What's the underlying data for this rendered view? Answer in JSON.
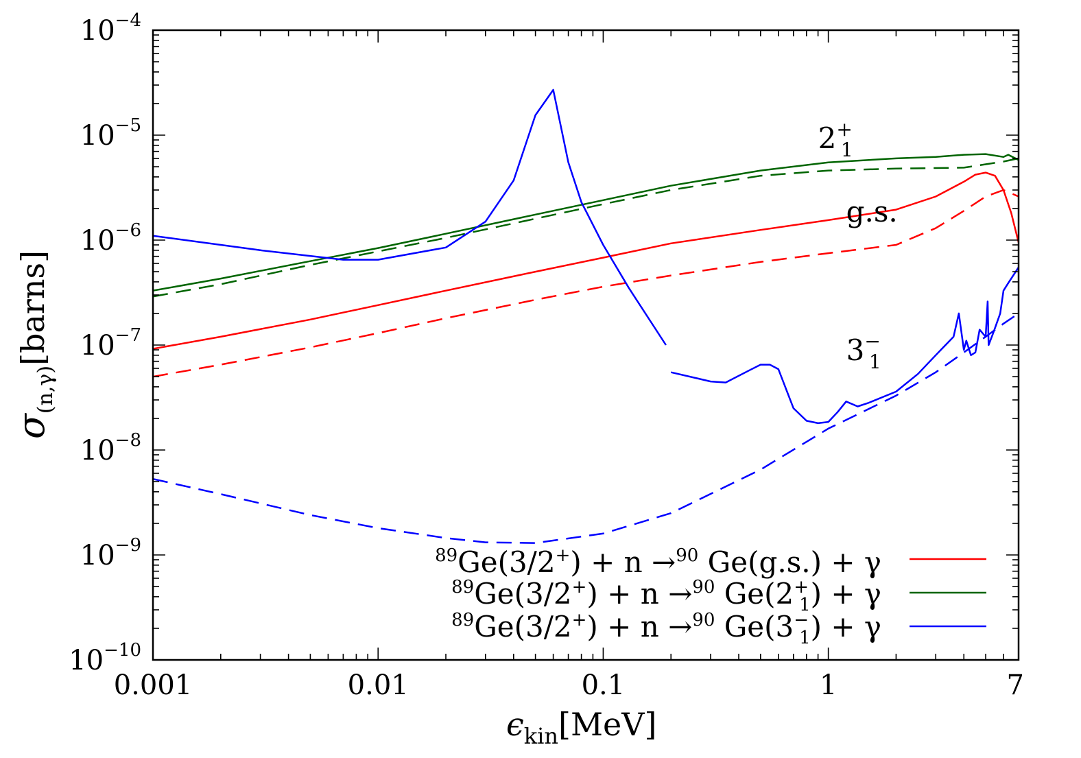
{
  "chart_data": {
    "type": "line",
    "xscale": "log",
    "yscale": "log",
    "xlim": [
      0.001,
      7
    ],
    "ylim": [
      1e-10,
      0.0001
    ],
    "xlabel": {
      "main": "ϵ",
      "sub": "kin",
      "unit": "[MeV]"
    },
    "ylabel": {
      "main": "σ",
      "sub": "(n,γ)",
      "unit": "[barns]"
    },
    "x_ticks": [
      {
        "value": 0.001,
        "label": "0.001"
      },
      {
        "value": 0.01,
        "label": "0.01"
      },
      {
        "value": 0.1,
        "label": "0.1"
      },
      {
        "value": 1,
        "label": "1"
      },
      {
        "value": 7,
        "label": "7"
      }
    ],
    "y_ticks": [
      {
        "value": 0.0001,
        "base": "10",
        "exp": "−4"
      },
      {
        "value": 1e-05,
        "base": "10",
        "exp": "−5"
      },
      {
        "value": 1e-06,
        "base": "10",
        "exp": "−6"
      },
      {
        "value": 1e-07,
        "base": "10",
        "exp": "−7"
      },
      {
        "value": 1e-08,
        "base": "10",
        "exp": "−8"
      },
      {
        "value": 1e-09,
        "base": "10",
        "exp": "−9"
      },
      {
        "value": 1e-10,
        "base": "10",
        "exp": "−10"
      }
    ],
    "annotations": [
      {
        "id": "2plus",
        "base": "2",
        "sup": "+",
        "sub": "1",
        "x": 0.9,
        "y": 7.5e-06
      },
      {
        "id": "gs",
        "text": "g.s.",
        "x": 1.2,
        "y": 1.5e-06
      },
      {
        "id": "3minus",
        "base": "3",
        "sup": "−",
        "sub": "1",
        "x": 1.2,
        "y": 7.2e-08
      }
    ],
    "legend_position": "bottom-right",
    "legend": [
      {
        "pre_sup": "89",
        "pre": "Ge(3/2",
        "pre_sup2": "+",
        "mid": ") + n →",
        "mid_sup": "90",
        "post": " Ge(g.s.) + γ",
        "color": "#ff0000"
      },
      {
        "pre_sup": "89",
        "pre": "Ge(3/2",
        "pre_sup2": "+",
        "mid": ") + n →",
        "mid_sup": "90",
        "post": " Ge(2",
        "post_sup": "+",
        "post_sub": "1",
        "tail": ") + γ",
        "color": "#006400"
      },
      {
        "pre_sup": "89",
        "pre": "Ge(3/2",
        "pre_sup2": "+",
        "mid": ") + n →",
        "mid_sup": "90",
        "post": " Ge(3",
        "post_sup": "−",
        "post_sub": "1",
        "tail": ") + γ",
        "color": "#0000ff"
      }
    ],
    "series": [
      {
        "color": "#ff0000",
        "style": "solid",
        "points": [
          [
            0.001,
            9.2e-08
          ],
          [
            0.002,
            1.2e-07
          ],
          [
            0.005,
            1.75e-07
          ],
          [
            0.01,
            2.4e-07
          ],
          [
            0.02,
            3.3e-07
          ],
          [
            0.05,
            5e-07
          ],
          [
            0.1,
            6.8e-07
          ],
          [
            0.2,
            9.3e-07
          ],
          [
            0.5,
            1.25e-06
          ],
          [
            1,
            1.55e-06
          ],
          [
            2,
            1.95e-06
          ],
          [
            3,
            2.6e-06
          ],
          [
            4,
            3.6e-06
          ],
          [
            4.5,
            4.2e-06
          ],
          [
            5,
            4.4e-06
          ],
          [
            5.5,
            4.1e-06
          ],
          [
            6,
            3e-06
          ],
          [
            6.5,
            1.8e-06
          ],
          [
            7,
            9.5e-07
          ]
        ]
      },
      {
        "color": "#ff0000",
        "style": "dashed",
        "points": [
          [
            0.001,
            5e-08
          ],
          [
            0.002,
            6.5e-08
          ],
          [
            0.005,
            9.5e-08
          ],
          [
            0.01,
            1.3e-07
          ],
          [
            0.02,
            1.8e-07
          ],
          [
            0.05,
            2.7e-07
          ],
          [
            0.1,
            3.6e-07
          ],
          [
            0.2,
            4.6e-07
          ],
          [
            0.5,
            6.2e-07
          ],
          [
            1,
            7.5e-07
          ],
          [
            2,
            9e-07
          ],
          [
            3,
            1.3e-06
          ],
          [
            4,
            1.9e-06
          ],
          [
            5,
            2.6e-06
          ],
          [
            6,
            3e-06
          ],
          [
            7,
            2.6e-06
          ]
        ]
      },
      {
        "color": "#006400",
        "style": "solid",
        "points": [
          [
            0.001,
            3.3e-07
          ],
          [
            0.002,
            4.3e-07
          ],
          [
            0.005,
            6.3e-07
          ],
          [
            0.01,
            8.4e-07
          ],
          [
            0.02,
            1.15e-06
          ],
          [
            0.05,
            1.75e-06
          ],
          [
            0.1,
            2.4e-06
          ],
          [
            0.2,
            3.3e-06
          ],
          [
            0.5,
            4.6e-06
          ],
          [
            1,
            5.5e-06
          ],
          [
            2,
            6e-06
          ],
          [
            3,
            6.2e-06
          ],
          [
            4,
            6.5e-06
          ],
          [
            5,
            6.6e-06
          ],
          [
            6,
            6.2e-06
          ],
          [
            6.3,
            6.5e-06
          ],
          [
            7,
            5.8e-06
          ]
        ]
      },
      {
        "color": "#006400",
        "style": "dashed",
        "points": [
          [
            0.001,
            2.9e-07
          ],
          [
            0.002,
            3.8e-07
          ],
          [
            0.005,
            5.8e-07
          ],
          [
            0.01,
            7.8e-07
          ],
          [
            0.02,
            1.05e-06
          ],
          [
            0.05,
            1.6e-06
          ],
          [
            0.1,
            2.2e-06
          ],
          [
            0.2,
            3e-06
          ],
          [
            0.5,
            4.1e-06
          ],
          [
            1,
            4.6e-06
          ],
          [
            2,
            4.8e-06
          ],
          [
            4,
            4.9e-06
          ],
          [
            6,
            5.6e-06
          ],
          [
            7,
            6e-06
          ]
        ]
      },
      {
        "color": "#0000ff",
        "style": "solid",
        "points": [
          [
            0.001,
            1.1e-06
          ],
          [
            0.003,
            8e-07
          ],
          [
            0.007,
            6.5e-07
          ],
          [
            0.01,
            6.5e-07
          ],
          [
            0.02,
            8.5e-07
          ],
          [
            0.03,
            1.5e-06
          ],
          [
            0.04,
            3.7e-06
          ],
          [
            0.05,
            1.55e-05
          ],
          [
            0.06,
            2.7e-05
          ],
          [
            0.07,
            5.5e-06
          ],
          [
            0.08,
            2.3e-06
          ],
          [
            0.1,
            9e-07
          ],
          [
            0.13,
            3.5e-07
          ],
          [
            0.19,
            1e-07
          ]
        ]
      },
      {
        "color": "#0000ff",
        "style": "solid",
        "points": [
          [
            0.2,
            5.5e-08
          ],
          [
            0.3,
            4.5e-08
          ],
          [
            0.35,
            4.4e-08
          ],
          [
            0.45,
            5.8e-08
          ],
          [
            0.5,
            6.5e-08
          ],
          [
            0.55,
            6.5e-08
          ],
          [
            0.6,
            5.9e-08
          ],
          [
            0.7,
            2.5e-08
          ],
          [
            0.8,
            1.9e-08
          ],
          [
            0.9,
            1.8e-08
          ],
          [
            1,
            1.85e-08
          ],
          [
            1.1,
            2.3e-08
          ],
          [
            1.2,
            2.9e-08
          ],
          [
            1.35,
            2.6e-08
          ],
          [
            1.5,
            2.8e-08
          ],
          [
            2,
            3.6e-08
          ],
          [
            2.5,
            5.3e-08
          ],
          [
            3,
            8e-08
          ],
          [
            3.6,
            1.2e-07
          ],
          [
            3.8,
            2e-07
          ],
          [
            4.0,
            9e-08
          ],
          [
            4.1,
            1.1e-07
          ],
          [
            4.3,
            8e-08
          ],
          [
            4.5,
            8.5e-08
          ],
          [
            4.7,
            1.4e-07
          ],
          [
            5.0,
            1.2e-07
          ],
          [
            5.1,
            2.6e-07
          ],
          [
            5.15,
            1e-07
          ],
          [
            5.4,
            1.3e-07
          ],
          [
            5.8,
            2e-07
          ],
          [
            6.0,
            3.3e-07
          ],
          [
            6.3,
            3.9e-07
          ],
          [
            7,
            5.5e-07
          ]
        ]
      },
      {
        "color": "#0000ff",
        "style": "dashed",
        "points": [
          [
            0.001,
            5.3e-09
          ],
          [
            0.002,
            3.8e-09
          ],
          [
            0.005,
            2.4e-09
          ],
          [
            0.01,
            1.8e-09
          ],
          [
            0.02,
            1.45e-09
          ],
          [
            0.03,
            1.32e-09
          ],
          [
            0.05,
            1.3e-09
          ],
          [
            0.1,
            1.6e-09
          ],
          [
            0.2,
            2.5e-09
          ],
          [
            0.5,
            6.5e-09
          ],
          [
            1,
            1.6e-08
          ],
          [
            2,
            3.3e-08
          ],
          [
            3,
            5.5e-08
          ],
          [
            4,
            8.5e-08
          ],
          [
            5,
            1.2e-07
          ],
          [
            6,
            1.6e-07
          ],
          [
            7,
            2e-07
          ]
        ]
      }
    ]
  }
}
